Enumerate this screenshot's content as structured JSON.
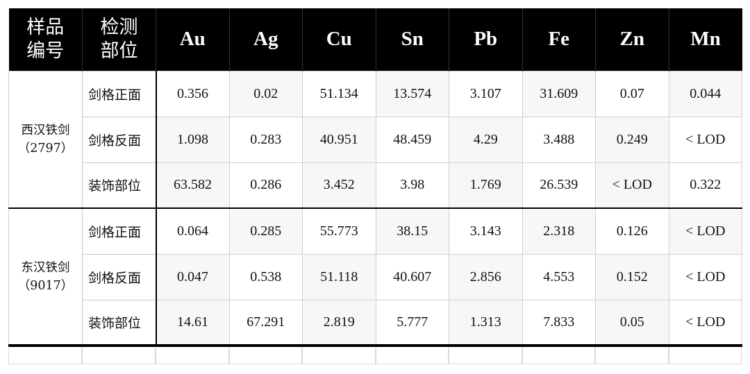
{
  "headers": [
    [
      "样品",
      "编号"
    ],
    [
      "检测",
      "部位"
    ],
    "Au",
    "Ag",
    "Cu",
    "Sn",
    "Pb",
    "Fe",
    "Zn",
    "Mn"
  ],
  "header_labels": {
    "sample_line1": "样品",
    "sample_line2": "编号",
    "pos_line1": "检测",
    "pos_line2": "部位",
    "elements": [
      "Au",
      "Ag",
      "Cu",
      "Sn",
      "Pb",
      "Fe",
      "Zn",
      "Mn"
    ]
  },
  "groups": [
    {
      "name": "西汉铁剑",
      "id": "（2797）",
      "rows": [
        {
          "position": "剑格正面",
          "values": [
            "0.356",
            "0.02",
            "51.134",
            "13.574",
            "3.107",
            "31.609",
            "0.07",
            "0.044"
          ]
        },
        {
          "position": "剑格反面",
          "values": [
            "1.098",
            "0.283",
            "40.951",
            "48.459",
            "4.29",
            "3.488",
            "0.249",
            "< LOD"
          ]
        },
        {
          "position": "装饰部位",
          "values": [
            "63.582",
            "0.286",
            "3.452",
            "3.98",
            "1.769",
            "26.539",
            "< LOD",
            "0.322"
          ]
        }
      ]
    },
    {
      "name": "东汉铁剑",
      "id": "（9017）",
      "rows": [
        {
          "position": "剑格正面",
          "values": [
            "0.064",
            "0.285",
            "55.773",
            "38.15",
            "3.143",
            "2.318",
            "0.126",
            "< LOD"
          ]
        },
        {
          "position": "剑格反面",
          "values": [
            "0.047",
            "0.538",
            "51.118",
            "40.607",
            "2.856",
            "4.553",
            "0.152",
            "< LOD"
          ]
        },
        {
          "position": "装饰部位",
          "values": [
            "14.61",
            "67.291",
            "2.819",
            "5.777",
            "1.313",
            "7.833",
            "0.05",
            "< LOD"
          ]
        }
      ]
    }
  ]
}
